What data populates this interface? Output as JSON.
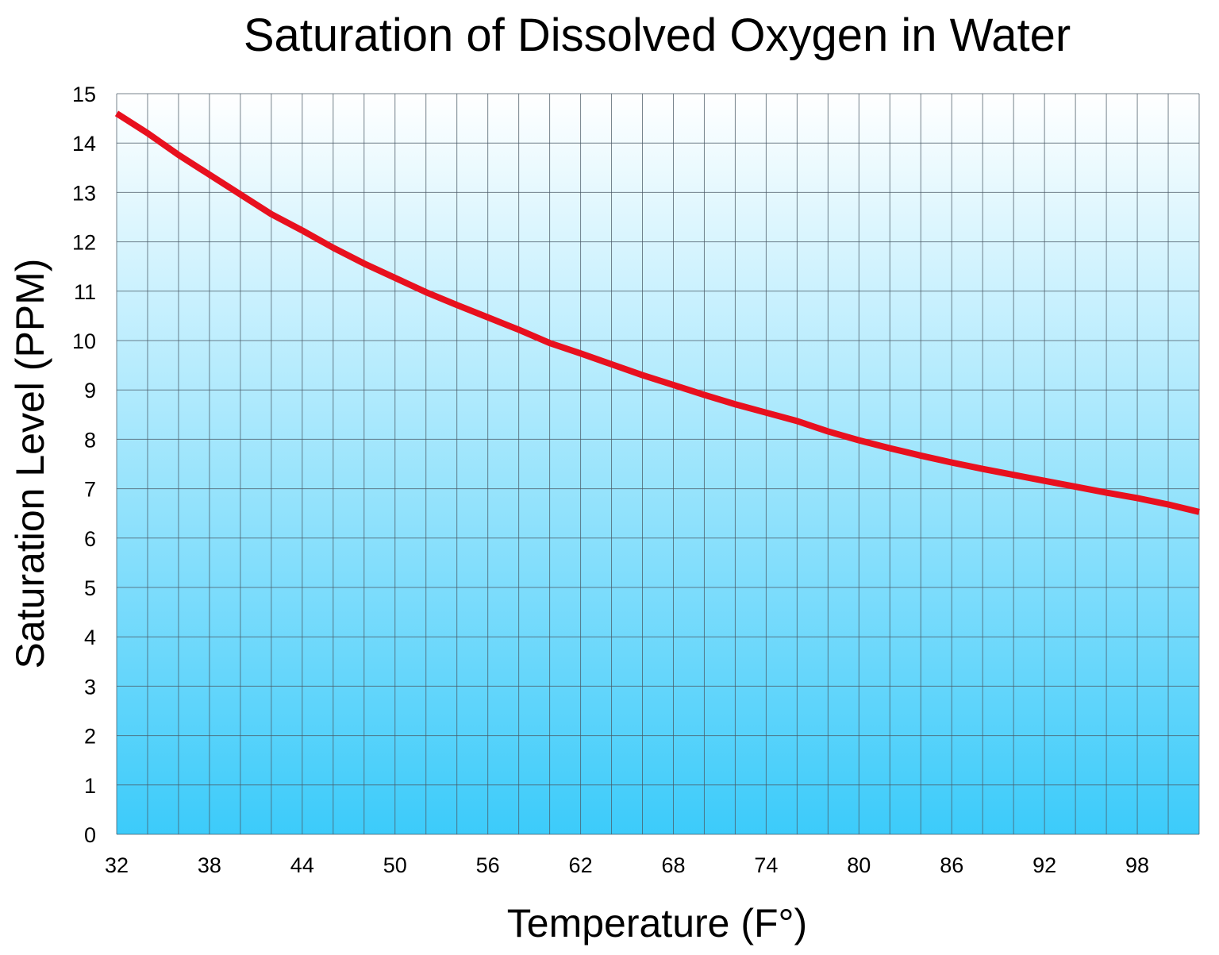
{
  "chart_data": {
    "type": "line",
    "title": "Saturation of Dissolved Oxygen in Water",
    "xlabel": "Temperature (F°)",
    "ylabel": "Saturation Level (PPM)",
    "xlim": [
      32,
      102
    ],
    "ylim": [
      0,
      15
    ],
    "x_ticks": [
      "32",
      "38",
      "44",
      "50",
      "56",
      "62",
      "68",
      "74",
      "80",
      "86",
      "92",
      "98"
    ],
    "y_ticks": [
      "0",
      "1",
      "2",
      "3",
      "4",
      "5",
      "6",
      "7",
      "8",
      "9",
      "10",
      "11",
      "12",
      "13",
      "14",
      "15"
    ],
    "grid": true,
    "x_grid_step": 2,
    "background": {
      "top": "#ffffff",
      "bottom": "#3ccbfa"
    },
    "series": [
      {
        "color": "#e8101e",
        "x": [
          32,
          34,
          36,
          38,
          40,
          42,
          44,
          46,
          48,
          50,
          52,
          54,
          56,
          58,
          60,
          62,
          64,
          66,
          68,
          70,
          72,
          74,
          76,
          78,
          80,
          82,
          84,
          86,
          88,
          90,
          92,
          94,
          96,
          98,
          100,
          102
        ],
        "y": [
          14.6,
          14.2,
          13.76,
          13.36,
          12.96,
          12.56,
          12.23,
          11.88,
          11.56,
          11.27,
          10.98,
          10.72,
          10.47,
          10.22,
          9.95,
          9.74,
          9.52,
          9.3,
          9.1,
          8.9,
          8.71,
          8.54,
          8.37,
          8.16,
          7.98,
          7.82,
          7.67,
          7.53,
          7.4,
          7.28,
          7.16,
          7.04,
          6.92,
          6.81,
          6.68,
          6.53
        ]
      }
    ]
  }
}
